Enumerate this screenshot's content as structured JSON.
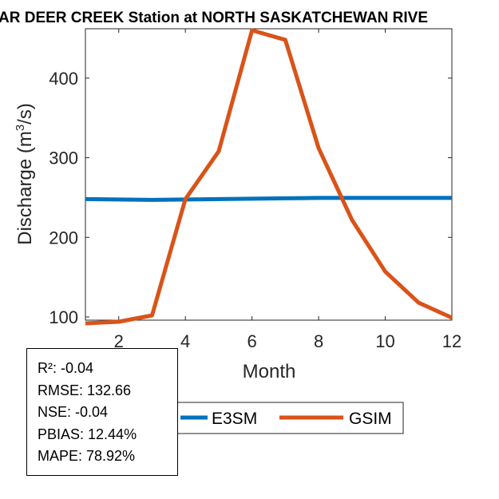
{
  "chart_data": {
    "type": "line",
    "title": "AR DEER CREEK  Station at  NORTH SASKATCHEWAN RIVE",
    "xlabel": "Month",
    "ylabel": "Discharge (m³/s)",
    "xlim": [
      1,
      12
    ],
    "ylim": [
      96,
      462
    ],
    "xticks": [
      2,
      4,
      6,
      8,
      10,
      12
    ],
    "yticks": [
      100,
      200,
      300,
      400
    ],
    "grid": false,
    "legend_position": "bottom-center",
    "x": [
      1,
      2,
      3,
      4,
      5,
      6,
      7,
      8,
      9,
      10,
      11,
      12
    ],
    "series": [
      {
        "name": "E3SM",
        "color": "#0072BD",
        "values": [
          248,
          247.5,
          247,
          247.5,
          248,
          248.5,
          249,
          249.5,
          249.5,
          249.5,
          249.5,
          249.5
        ]
      },
      {
        "name": "GSIM",
        "color": "#D95319",
        "values": [
          92,
          94,
          102,
          248,
          308,
          460,
          448,
          312,
          222,
          157,
          118,
          99
        ]
      }
    ]
  },
  "stats": {
    "r2": "R²: -0.04",
    "rmse": "RMSE: 132.66",
    "nse": "NSE: -0.04",
    "pbias": "PBIAS: 12.44%",
    "mape": "MAPE: 78.92%"
  }
}
